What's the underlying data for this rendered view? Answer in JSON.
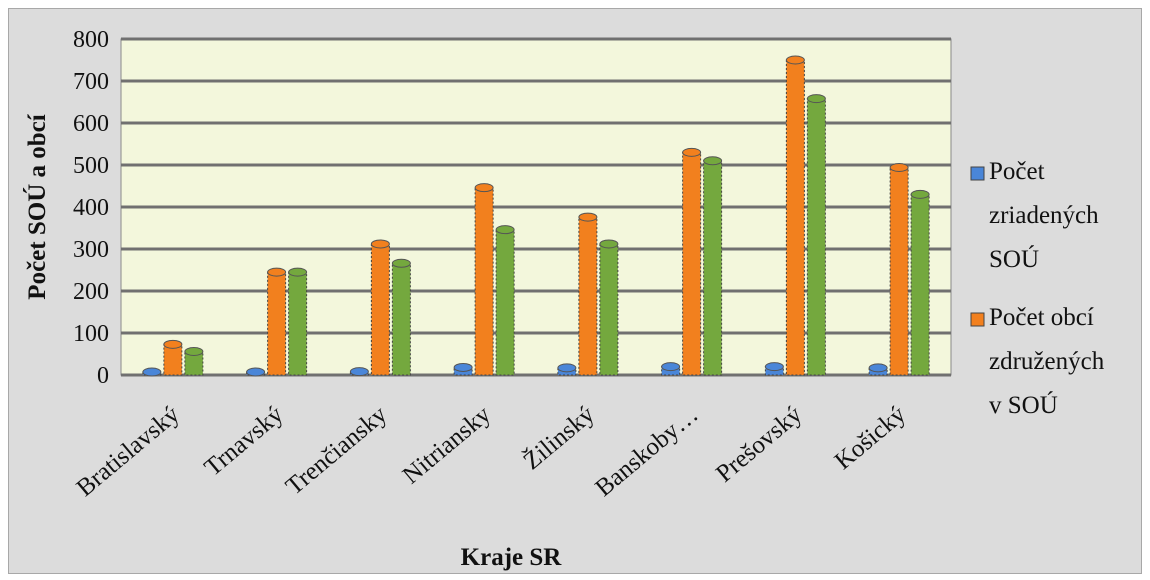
{
  "chart_data": {
    "type": "bar",
    "categories": [
      "Bratislavský",
      "Trnavský",
      "Trenčiansky",
      "Nitriansky",
      "Žilinský",
      "Banskoby…",
      "Prešovský",
      "Košický"
    ],
    "series": [
      {
        "name": "Počet zriadených SOÚ",
        "legend_lines": [
          "Počet",
          "zriadených",
          "SOÚ"
        ],
        "values": [
          3,
          7,
          8,
          18,
          17,
          20,
          20,
          17
        ],
        "color": "#4a86d8"
      },
      {
        "name": "Počet obcí združených v SOÚ",
        "legend_lines": [
          "Počet obcí",
          "združených",
          "v SOÚ"
        ],
        "values": [
          73,
          245,
          312,
          446,
          376,
          530,
          750,
          494
        ],
        "color": "#f2801e"
      },
      {
        "name": "",
        "values": [
          56,
          245,
          266,
          346,
          312,
          510,
          658,
          430
        ],
        "color": "#74a83e"
      }
    ],
    "title": "",
    "xlabel": "Kraje SR",
    "ylabel": "Počet SOÚ a obcí",
    "ylim": [
      0,
      800
    ],
    "yticks": [
      "0",
      "100",
      "200",
      "300",
      "400",
      "500",
      "600",
      "700",
      "800"
    ],
    "grid": true,
    "legend": "right"
  },
  "colors": {
    "plot_background": "#f3f7dc",
    "frame_background": "#dcdcdc",
    "gridline": "#707070"
  }
}
